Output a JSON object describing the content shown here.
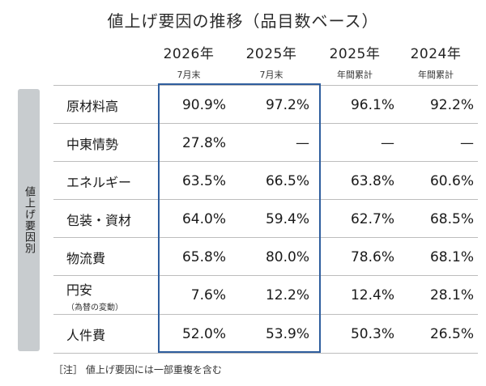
{
  "title": "値上げ要因の推移（品目数ベース）",
  "side_label": "値上げ要因別",
  "columns": [
    {
      "year": "2026年",
      "sub": "7月末"
    },
    {
      "year": "2025年",
      "sub": "7月末"
    },
    {
      "year": "2025年",
      "sub": "年間累計"
    },
    {
      "year": "2024年",
      "sub": "年間累計"
    }
  ],
  "rows": [
    {
      "label": "原材料高",
      "note": "",
      "values": [
        "90.9%",
        "97.2%",
        "96.1%",
        "92.2%"
      ]
    },
    {
      "label": "中東情勢",
      "note": "",
      "values": [
        "27.8%",
        "—",
        "—",
        "—"
      ]
    },
    {
      "label": "エネルギー",
      "note": "",
      "values": [
        "63.5%",
        "66.5%",
        "63.8%",
        "60.6%"
      ]
    },
    {
      "label": "包装・資材",
      "note": "",
      "values": [
        "64.0%",
        "59.4%",
        "62.7%",
        "68.5%"
      ]
    },
    {
      "label": "物流費",
      "note": "",
      "values": [
        "65.8%",
        "80.0%",
        "78.6%",
        "68.1%"
      ]
    },
    {
      "label": "円安",
      "note": "（為替の変動）",
      "values": [
        "7.6%",
        "12.2%",
        "12.4%",
        "28.1%"
      ]
    },
    {
      "label": "人件費",
      "note": "",
      "values": [
        "52.0%",
        "53.9%",
        "50.3%",
        "26.5%"
      ]
    }
  ],
  "footnote": "［注］ 値上げ要因には一部重複を含む",
  "colors": {
    "highlight": "#2f5e9e",
    "sidebar": "#c8cccf",
    "rule": "#bdbdbd"
  }
}
